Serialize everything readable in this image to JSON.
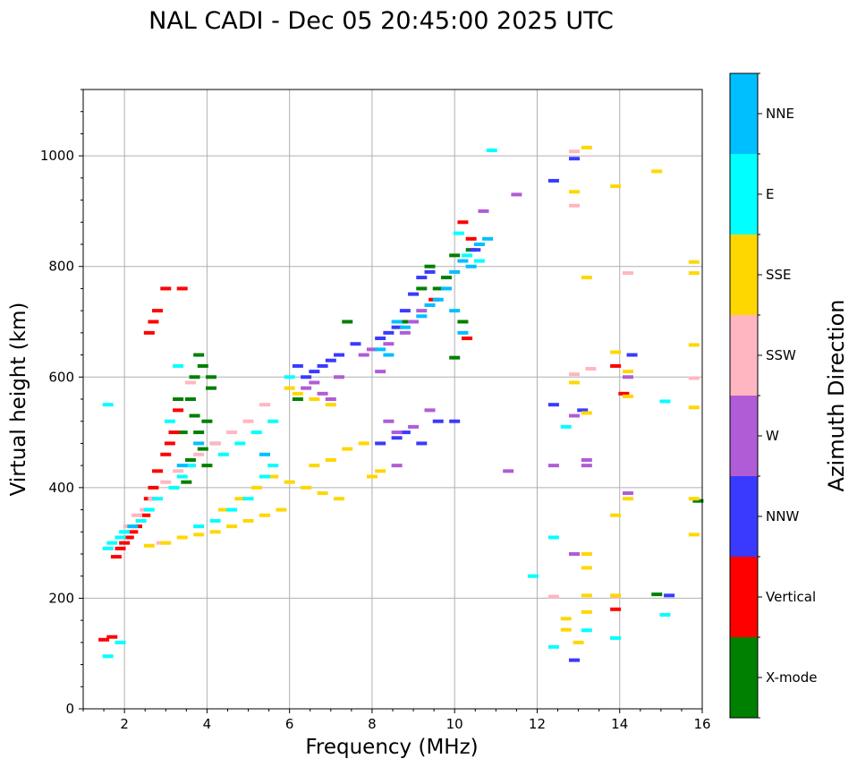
{
  "chart_data": {
    "type": "scatter",
    "title": "NAL CADI - Dec 05 20:45:00 2025 UTC",
    "xlabel": "Frequency (MHz)",
    "ylabel": "Virtual height (km)",
    "xlim": [
      1.0,
      16.0
    ],
    "ylim": [
      0,
      1120
    ],
    "xticks": [
      2,
      4,
      6,
      8,
      10,
      12,
      14,
      16
    ],
    "yticks": [
      0,
      200,
      400,
      600,
      800,
      1000
    ],
    "grid": true,
    "colorbar": {
      "label": "Azimuth Direction",
      "categories": [
        "X-mode",
        "Vertical",
        "NNW",
        "W",
        "SSW",
        "SSE",
        "E",
        "NNE"
      ],
      "colors": [
        "#008000",
        "#ff0000",
        "#3a3aff",
        "#b05cd6",
        "#ffb6c1",
        "#ffd700",
        "#00ffff",
        "#00bfff"
      ]
    },
    "series": [
      {
        "name": "X-mode",
        "points": [
          [
            3.6,
            560
          ],
          [
            3.7,
            530
          ],
          [
            3.8,
            500
          ],
          [
            3.9,
            470
          ],
          [
            4.0,
            440
          ],
          [
            3.7,
            600
          ],
          [
            3.9,
            620
          ],
          [
            4.1,
            580
          ],
          [
            3.8,
            640
          ],
          [
            4.0,
            520
          ],
          [
            4.2,
            480
          ],
          [
            3.6,
            450
          ],
          [
            3.5,
            410
          ],
          [
            4.1,
            600
          ],
          [
            9.4,
            800
          ],
          [
            9.6,
            760
          ],
          [
            9.8,
            780
          ],
          [
            10.0,
            820
          ],
          [
            10.2,
            700
          ],
          [
            9.2,
            760
          ],
          [
            10.4,
            830
          ],
          [
            10.0,
            635
          ],
          [
            8.8,
            700
          ],
          [
            7.4,
            700
          ],
          [
            6.2,
            560
          ],
          [
            14.9,
            207
          ],
          [
            15.9,
            376
          ],
          [
            3.3,
            560
          ],
          [
            3.4,
            500
          ]
        ]
      },
      {
        "name": "Vertical",
        "points": [
          [
            1.8,
            275
          ],
          [
            1.9,
            290
          ],
          [
            2.0,
            300
          ],
          [
            2.1,
            310
          ],
          [
            2.2,
            320
          ],
          [
            2.3,
            330
          ],
          [
            2.5,
            350
          ],
          [
            2.6,
            380
          ],
          [
            2.7,
            400
          ],
          [
            2.8,
            430
          ],
          [
            3.0,
            460
          ],
          [
            3.1,
            480
          ],
          [
            3.2,
            500
          ],
          [
            3.3,
            540
          ],
          [
            2.6,
            680
          ],
          [
            2.7,
            700
          ],
          [
            2.8,
            720
          ],
          [
            3.0,
            760
          ],
          [
            3.4,
            760
          ],
          [
            1.5,
            125
          ],
          [
            1.7,
            130
          ],
          [
            9.5,
            740
          ],
          [
            10.2,
            880
          ],
          [
            10.4,
            850
          ],
          [
            10.3,
            670
          ],
          [
            13.9,
            180
          ],
          [
            14.1,
            570
          ],
          [
            13.9,
            620
          ]
        ]
      },
      {
        "name": "NNW",
        "points": [
          [
            6.2,
            620
          ],
          [
            6.4,
            600
          ],
          [
            6.6,
            610
          ],
          [
            6.8,
            620
          ],
          [
            7.0,
            630
          ],
          [
            7.2,
            640
          ],
          [
            7.6,
            660
          ],
          [
            8.2,
            670
          ],
          [
            8.4,
            680
          ],
          [
            8.6,
            690
          ],
          [
            8.8,
            720
          ],
          [
            9.0,
            750
          ],
          [
            9.2,
            780
          ],
          [
            9.4,
            790
          ],
          [
            8.8,
            500
          ],
          [
            9.2,
            480
          ],
          [
            9.6,
            520
          ],
          [
            10.0,
            520
          ],
          [
            8.2,
            480
          ],
          [
            8.6,
            490
          ],
          [
            10.5,
            830
          ],
          [
            12.4,
            955
          ],
          [
            12.9,
            995
          ],
          [
            12.9,
            88
          ],
          [
            14.3,
            640
          ],
          [
            15.2,
            205
          ],
          [
            13.1,
            540
          ],
          [
            12.4,
            550
          ]
        ]
      },
      {
        "name": "W",
        "points": [
          [
            6.4,
            580
          ],
          [
            6.6,
            590
          ],
          [
            6.8,
            570
          ],
          [
            7.0,
            560
          ],
          [
            7.2,
            600
          ],
          [
            7.8,
            640
          ],
          [
            8.0,
            650
          ],
          [
            8.2,
            610
          ],
          [
            8.4,
            660
          ],
          [
            8.8,
            680
          ],
          [
            9.0,
            700
          ],
          [
            9.2,
            720
          ],
          [
            8.4,
            520
          ],
          [
            8.6,
            500
          ],
          [
            9.0,
            510
          ],
          [
            8.6,
            440
          ],
          [
            9.4,
            540
          ],
          [
            11.3,
            430
          ],
          [
            11.5,
            930
          ],
          [
            12.4,
            440
          ],
          [
            12.9,
            530
          ],
          [
            13.2,
            450
          ],
          [
            13.2,
            440
          ],
          [
            14.2,
            390
          ],
          [
            14.2,
            600
          ],
          [
            12.9,
            280
          ],
          [
            10.7,
            900
          ]
        ]
      },
      {
        "name": "SSW",
        "points": [
          [
            2.1,
            330
          ],
          [
            2.3,
            350
          ],
          [
            2.5,
            360
          ],
          [
            2.7,
            380
          ],
          [
            3.0,
            410
          ],
          [
            3.3,
            430
          ],
          [
            3.8,
            460
          ],
          [
            4.2,
            480
          ],
          [
            4.6,
            500
          ],
          [
            5.0,
            520
          ],
          [
            5.4,
            550
          ],
          [
            2.9,
            300
          ],
          [
            3.6,
            590
          ],
          [
            12.9,
            605
          ],
          [
            12.9,
            910
          ],
          [
            12.9,
            1008
          ],
          [
            15.8,
            598
          ],
          [
            12.4,
            203
          ],
          [
            13.9,
            203
          ],
          [
            14.2,
            788
          ],
          [
            13.3,
            615
          ]
        ]
      },
      {
        "name": "SSE",
        "points": [
          [
            2.6,
            295
          ],
          [
            3.0,
            300
          ],
          [
            3.4,
            310
          ],
          [
            3.8,
            315
          ],
          [
            4.2,
            320
          ],
          [
            4.6,
            330
          ],
          [
            5.0,
            340
          ],
          [
            5.4,
            350
          ],
          [
            5.8,
            360
          ],
          [
            4.4,
            360
          ],
          [
            4.8,
            380
          ],
          [
            5.2,
            400
          ],
          [
            5.6,
            420
          ],
          [
            6.0,
            410
          ],
          [
            6.4,
            400
          ],
          [
            6.8,
            390
          ],
          [
            7.2,
            380
          ],
          [
            6.6,
            440
          ],
          [
            7.0,
            450
          ],
          [
            7.4,
            470
          ],
          [
            7.8,
            480
          ],
          [
            8.0,
            420
          ],
          [
            8.2,
            430
          ],
          [
            6.2,
            570
          ],
          [
            6.6,
            560
          ],
          [
            7.0,
            550
          ],
          [
            6.0,
            580
          ],
          [
            13.0,
            120
          ],
          [
            13.2,
            175
          ],
          [
            13.2,
            205
          ],
          [
            13.2,
            255
          ],
          [
            13.2,
            280
          ],
          [
            13.2,
            535
          ],
          [
            13.2,
            780
          ],
          [
            13.2,
            1015
          ],
          [
            12.9,
            590
          ],
          [
            12.9,
            935
          ],
          [
            13.9,
            205
          ],
          [
            13.9,
            350
          ],
          [
            13.9,
            645
          ],
          [
            13.9,
            945
          ],
          [
            14.2,
            610
          ],
          [
            14.2,
            565
          ],
          [
            14.9,
            972
          ],
          [
            15.8,
            315
          ],
          [
            15.8,
            380
          ],
          [
            15.8,
            545
          ],
          [
            15.8,
            658
          ],
          [
            15.8,
            788
          ],
          [
            15.8,
            808
          ],
          [
            12.7,
            163
          ],
          [
            12.7,
            143
          ],
          [
            14.2,
            380
          ]
        ]
      },
      {
        "name": "E",
        "points": [
          [
            1.6,
            290
          ],
          [
            1.7,
            300
          ],
          [
            1.9,
            310
          ],
          [
            2.0,
            320
          ],
          [
            2.4,
            340
          ],
          [
            2.6,
            360
          ],
          [
            2.8,
            380
          ],
          [
            3.2,
            400
          ],
          [
            3.4,
            420
          ],
          [
            3.6,
            440
          ],
          [
            3.8,
            330
          ],
          [
            4.2,
            340
          ],
          [
            4.6,
            360
          ],
          [
            5.0,
            380
          ],
          [
            5.4,
            420
          ],
          [
            5.6,
            440
          ],
          [
            4.4,
            460
          ],
          [
            4.8,
            480
          ],
          [
            5.2,
            500
          ],
          [
            5.6,
            520
          ],
          [
            3.3,
            620
          ],
          [
            3.1,
            520
          ],
          [
            1.6,
            550
          ],
          [
            1.6,
            95
          ],
          [
            1.9,
            120
          ],
          [
            10.1,
            860
          ],
          [
            10.3,
            820
          ],
          [
            10.6,
            810
          ],
          [
            10.9,
            1010
          ],
          [
            12.4,
            310
          ],
          [
            12.4,
            112
          ],
          [
            12.7,
            510
          ],
          [
            13.2,
            142
          ],
          [
            13.9,
            128
          ],
          [
            11.9,
            240
          ],
          [
            15.1,
            170
          ],
          [
            15.1,
            556
          ],
          [
            6.0,
            600
          ]
        ]
      },
      {
        "name": "NNE",
        "points": [
          [
            2.2,
            330
          ],
          [
            3.4,
            440
          ],
          [
            3.8,
            480
          ],
          [
            5.4,
            460
          ],
          [
            8.2,
            650
          ],
          [
            8.8,
            690
          ],
          [
            9.2,
            710
          ],
          [
            9.4,
            730
          ],
          [
            9.6,
            740
          ],
          [
            9.8,
            760
          ],
          [
            10.0,
            790
          ],
          [
            10.2,
            810
          ],
          [
            10.4,
            800
          ],
          [
            10.6,
            840
          ],
          [
            10.8,
            850
          ],
          [
            8.6,
            700
          ],
          [
            10.0,
            720
          ],
          [
            10.2,
            680
          ],
          [
            8.4,
            640
          ]
        ]
      }
    ]
  }
}
